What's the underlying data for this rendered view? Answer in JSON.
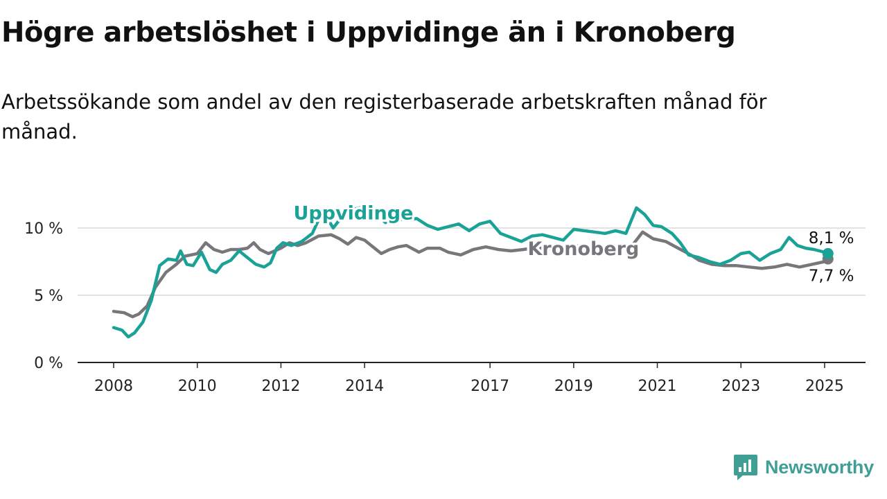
{
  "header": {
    "title": "Högre arbetslöshet i Uppvidinge än i Kronoberg",
    "subtitle": "Arbetssökande som andel av den registerbaserade arbetskraften månad för månad."
  },
  "brand": {
    "name": "Newsworthy",
    "icon": "newsworthy-logo-icon",
    "color": "#3f9f94"
  },
  "chart_data": {
    "type": "line",
    "title": "Högre arbetslöshet i Uppvidinge än i Kronoberg",
    "subtitle": "Arbetssökande som andel av den registerbaserade arbetskraften månad för månad.",
    "xlim": [
      2008.0,
      2025.75
    ],
    "ylim": [
      0,
      12
    ],
    "yticks": [
      {
        "value": 0,
        "label": "0 %"
      },
      {
        "value": 5,
        "label": "5 %"
      },
      {
        "value": 10,
        "label": "10 %"
      }
    ],
    "xticks": [
      {
        "value": 2008,
        "label": "2008"
      },
      {
        "value": 2010,
        "label": "2010"
      },
      {
        "value": 2012,
        "label": "2012"
      },
      {
        "value": 2014,
        "label": "2014"
      },
      {
        "value": 2017,
        "label": "2017"
      },
      {
        "value": 2019,
        "label": "2019"
      },
      {
        "value": 2021,
        "label": "2021"
      },
      {
        "value": 2023,
        "label": "2023"
      },
      {
        "value": 2025,
        "label": "2025"
      }
    ],
    "grid": true,
    "series": [
      {
        "name": "Kronoberg",
        "color": "#77767a",
        "label_position": [
          2017.9,
          8.0
        ],
        "end_label": "7,7 %",
        "x": [
          2008.0,
          2008.25,
          2008.45,
          2008.6,
          2008.8,
          2009.0,
          2009.25,
          2009.5,
          2009.7,
          2010.0,
          2010.2,
          2010.4,
          2010.6,
          2010.8,
          2011.0,
          2011.2,
          2011.35,
          2011.5,
          2011.7,
          2012.0,
          2012.2,
          2012.4,
          2012.6,
          2012.9,
          2013.2,
          2013.4,
          2013.6,
          2013.8,
          2014.0,
          2014.2,
          2014.4,
          2014.6,
          2014.8,
          2015.0,
          2015.3,
          2015.5,
          2015.8,
          2016.0,
          2016.3,
          2016.6,
          2016.9,
          2017.2,
          2017.5,
          2017.8,
          2018.0,
          2018.3,
          2018.6,
          2018.9,
          2019.2,
          2019.5,
          2019.8,
          2020.1,
          2020.4,
          2020.65,
          2020.9,
          2021.2,
          2021.5,
          2021.8,
          2022.0,
          2022.3,
          2022.6,
          2022.9,
          2023.2,
          2023.5,
          2023.8,
          2024.1,
          2024.4,
          2024.7,
          2025.0,
          2025.08
        ],
        "values": [
          3.8,
          3.7,
          3.4,
          3.6,
          4.2,
          5.6,
          6.7,
          7.3,
          7.9,
          8.1,
          8.9,
          8.4,
          8.2,
          8.4,
          8.4,
          8.5,
          8.9,
          8.4,
          8.1,
          8.5,
          8.9,
          8.7,
          8.9,
          9.4,
          9.5,
          9.2,
          8.8,
          9.3,
          9.1,
          8.6,
          8.1,
          8.4,
          8.6,
          8.7,
          8.2,
          8.5,
          8.5,
          8.2,
          8.0,
          8.4,
          8.6,
          8.4,
          8.3,
          8.4,
          8.5,
          8.5,
          8.4,
          8.6,
          8.7,
          8.6,
          8.5,
          8.5,
          8.7,
          9.7,
          9.2,
          9.0,
          8.5,
          8.0,
          7.6,
          7.3,
          7.2,
          7.2,
          7.1,
          7.0,
          7.1,
          7.3,
          7.1,
          7.3,
          7.5,
          7.7
        ]
      },
      {
        "name": "Uppvidinge",
        "color": "#1aa296",
        "label_position": [
          2012.3,
          10.65
        ],
        "end_label": "8,1 %",
        "x": [
          2008.0,
          2008.2,
          2008.35,
          2008.5,
          2008.7,
          2008.9,
          2009.1,
          2009.3,
          2009.5,
          2009.6,
          2009.75,
          2009.9,
          2010.1,
          2010.3,
          2010.45,
          2010.6,
          2010.8,
          2011.0,
          2011.2,
          2011.4,
          2011.6,
          2011.75,
          2011.9,
          2012.05,
          2012.25,
          2012.5,
          2012.75,
          2013.0,
          2013.25,
          2013.5,
          2013.75,
          2014.0,
          2014.25,
          2014.5,
          2014.75,
          2015.0,
          2015.25,
          2015.5,
          2015.75,
          2016.0,
          2016.25,
          2016.5,
          2016.75,
          2017.0,
          2017.25,
          2017.5,
          2017.75,
          2018.0,
          2018.25,
          2018.5,
          2018.75,
          2019.0,
          2019.25,
          2019.5,
          2019.75,
          2020.0,
          2020.25,
          2020.5,
          2020.7,
          2020.9,
          2021.1,
          2021.35,
          2021.55,
          2021.75,
          2022.0,
          2022.25,
          2022.5,
          2022.75,
          2023.0,
          2023.2,
          2023.45,
          2023.7,
          2023.95,
          2024.15,
          2024.35,
          2024.55,
          2024.75,
          2025.0,
          2025.08
        ],
        "values": [
          2.6,
          2.4,
          1.9,
          2.2,
          3.0,
          4.6,
          7.2,
          7.7,
          7.6,
          8.3,
          7.3,
          7.2,
          8.2,
          6.9,
          6.7,
          7.3,
          7.6,
          8.3,
          7.8,
          7.3,
          7.1,
          7.4,
          8.5,
          8.9,
          8.7,
          9.0,
          9.6,
          11.3,
          10.0,
          11.0,
          11.4,
          11.6,
          11.1,
          10.4,
          10.7,
          10.6,
          10.7,
          10.2,
          9.9,
          10.1,
          10.3,
          9.8,
          10.3,
          10.5,
          9.6,
          9.3,
          9.0,
          9.4,
          9.5,
          9.3,
          9.1,
          9.9,
          9.8,
          9.7,
          9.6,
          9.8,
          9.6,
          11.5,
          11.0,
          10.2,
          10.1,
          9.6,
          8.9,
          8.0,
          7.8,
          7.5,
          7.3,
          7.6,
          8.1,
          8.2,
          7.6,
          8.1,
          8.4,
          9.3,
          8.7,
          8.5,
          8.4,
          8.2,
          8.1
        ]
      }
    ]
  }
}
